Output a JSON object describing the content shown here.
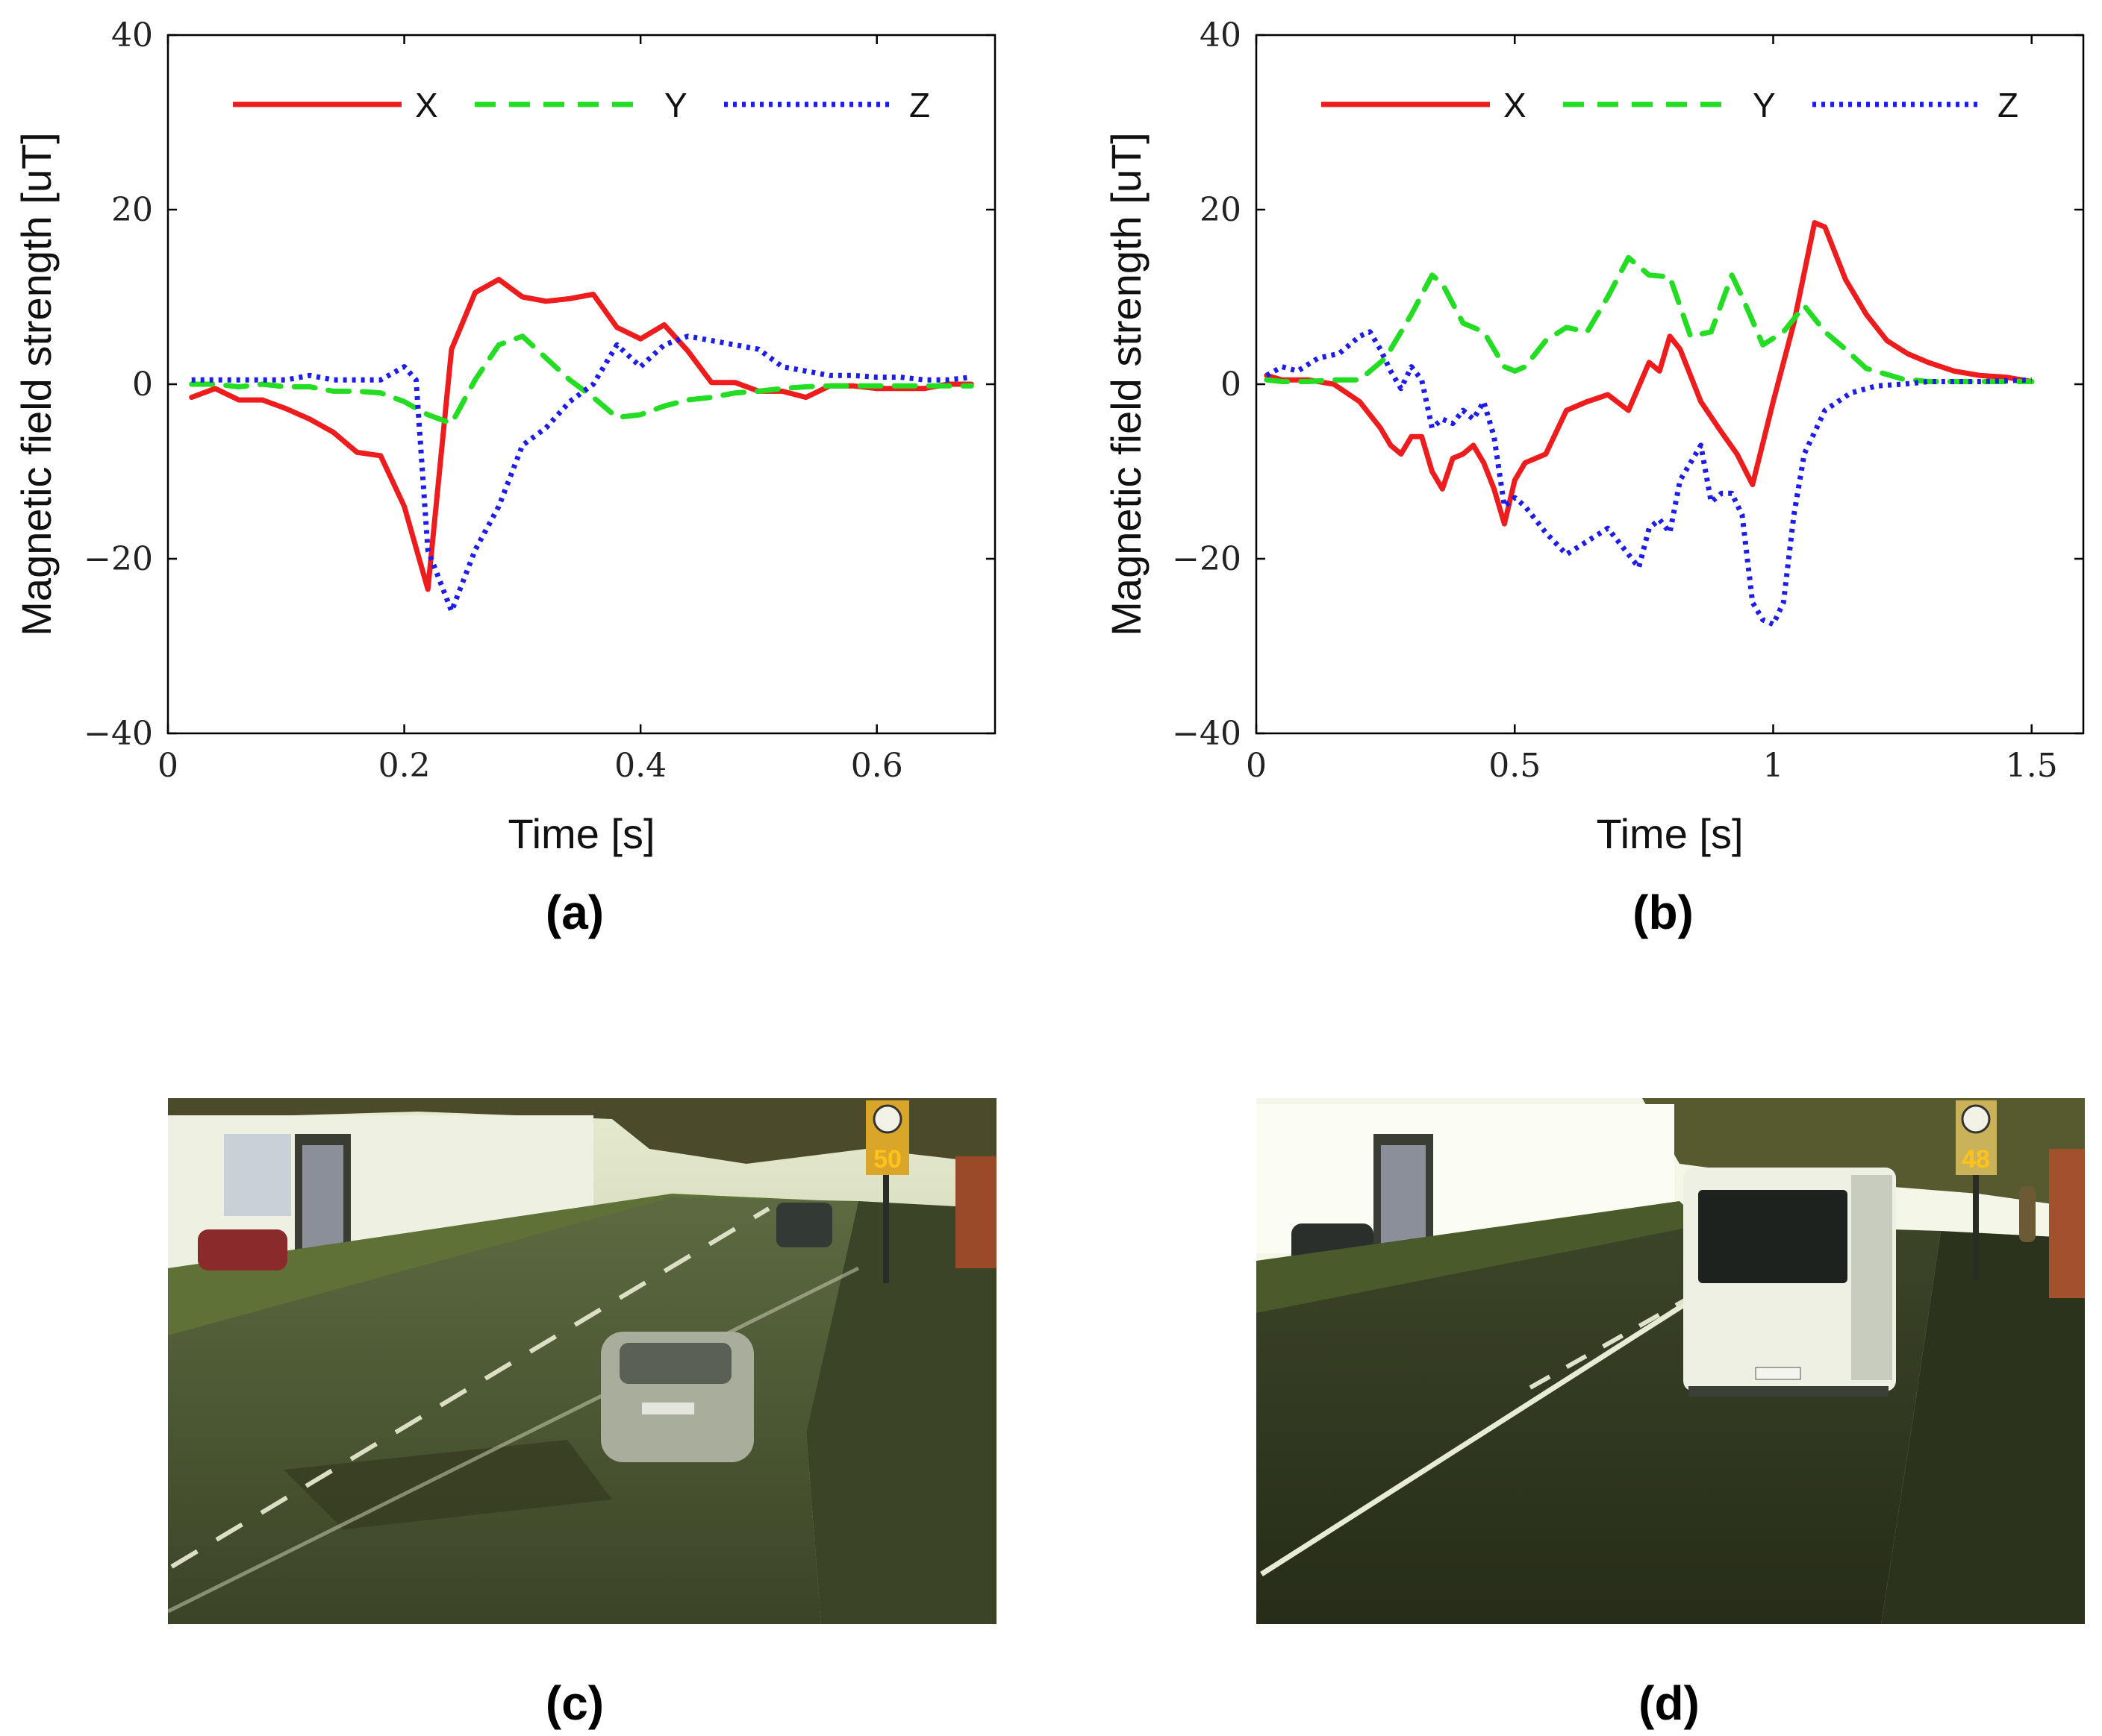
{
  "chart_data": [
    {
      "type": "line",
      "panel": "(a)",
      "xlabel": "Time [s]",
      "ylabel": "Magnetic field strength [uT]",
      "xlim": [
        0,
        0.7
      ],
      "ylim": [
        -40,
        40
      ],
      "xticks": [
        0,
        0.2,
        0.4,
        0.6
      ],
      "xtick_labels": [
        "0",
        "0.2",
        "0.4",
        "0.6"
      ],
      "yticks": [
        -40,
        -20,
        0,
        20,
        40
      ],
      "ytick_labels": [
        "−40",
        "−20",
        "0",
        "20",
        "40"
      ],
      "legend": [
        "X",
        "Y",
        "Z"
      ],
      "series": [
        {
          "name": "X",
          "color": "#ee1c1c",
          "dash": "solid",
          "x": [
            0.02,
            0.04,
            0.06,
            0.08,
            0.1,
            0.12,
            0.14,
            0.16,
            0.18,
            0.2,
            0.22,
            0.24,
            0.26,
            0.28,
            0.3,
            0.32,
            0.34,
            0.36,
            0.38,
            0.4,
            0.42,
            0.44,
            0.46,
            0.48,
            0.5,
            0.52,
            0.54,
            0.56,
            0.58,
            0.6,
            0.62,
            0.64,
            0.66,
            0.68
          ],
          "y": [
            -1.5,
            -0.5,
            -1.8,
            -1.8,
            -2.8,
            -4,
            -5.5,
            -7.8,
            -8.2,
            -14,
            -23.5,
            4,
            10.5,
            12,
            10,
            9.5,
            9.8,
            10.3,
            6.5,
            5.2,
            6.8,
            3.8,
            0.2,
            0.2,
            -0.8,
            -0.8,
            -1.5,
            -0.2,
            -0.2,
            -0.5,
            -0.5,
            -0.5,
            0,
            0
          ]
        },
        {
          "name": "Y",
          "color": "#22dd22",
          "dash": "dashed",
          "x": [
            0.02,
            0.04,
            0.06,
            0.08,
            0.1,
            0.12,
            0.14,
            0.16,
            0.18,
            0.2,
            0.22,
            0.24,
            0.26,
            0.28,
            0.3,
            0.32,
            0.34,
            0.36,
            0.38,
            0.4,
            0.42,
            0.44,
            0.46,
            0.48,
            0.5,
            0.52,
            0.54,
            0.56,
            0.58,
            0.6,
            0.62,
            0.64,
            0.66,
            0.68
          ],
          "y": [
            0,
            0,
            -0.3,
            0,
            -0.3,
            -0.3,
            -0.8,
            -0.8,
            -1,
            -2,
            -3.5,
            -4.5,
            0.5,
            4.5,
            5.5,
            3,
            0.5,
            -1.5,
            -3.8,
            -3.5,
            -2.5,
            -1.8,
            -1.5,
            -1,
            -0.8,
            -0.5,
            -0.3,
            -0.2,
            -0.2,
            -0.2,
            -0.2,
            -0.2,
            -0.2,
            -0.2
          ]
        },
        {
          "name": "Z",
          "color": "#1c1cee",
          "dash": "dotted",
          "x": [
            0.02,
            0.04,
            0.06,
            0.08,
            0.1,
            0.12,
            0.14,
            0.16,
            0.18,
            0.2,
            0.21,
            0.22,
            0.24,
            0.26,
            0.28,
            0.3,
            0.32,
            0.34,
            0.36,
            0.38,
            0.4,
            0.42,
            0.44,
            0.46,
            0.48,
            0.5,
            0.52,
            0.54,
            0.56,
            0.58,
            0.6,
            0.62,
            0.64,
            0.66,
            0.68
          ],
          "y": [
            0.5,
            0.5,
            0.5,
            0.5,
            0.5,
            1,
            0.5,
            0.5,
            0.5,
            2,
            0.5,
            -19,
            -26,
            -19,
            -14,
            -7,
            -5,
            -2,
            0,
            4.5,
            2,
            4.5,
            5.5,
            5,
            4.5,
            4,
            2,
            1.5,
            1,
            1,
            0.8,
            0.8,
            0.5,
            0.5,
            0.8
          ]
        }
      ]
    },
    {
      "type": "line",
      "panel": "(b)",
      "xlabel": "Time [s]",
      "ylabel": "Magnetic field strength [uT]",
      "xlim": [
        0,
        1.6
      ],
      "ylim": [
        -40,
        40
      ],
      "xticks": [
        0,
        0.5,
        1,
        1.5
      ],
      "xtick_labels": [
        "0",
        "0.5",
        "1",
        "1.5"
      ],
      "yticks": [
        -40,
        -20,
        0,
        20,
        40
      ],
      "ytick_labels": [
        "−40",
        "−20",
        "0",
        "20",
        "40"
      ],
      "legend": [
        "X",
        "Y",
        "Z"
      ],
      "series": [
        {
          "name": "X",
          "color": "#ee1c1c",
          "dash": "solid",
          "x": [
            0.02,
            0.05,
            0.1,
            0.15,
            0.2,
            0.24,
            0.26,
            0.28,
            0.3,
            0.32,
            0.34,
            0.36,
            0.38,
            0.4,
            0.42,
            0.44,
            0.46,
            0.48,
            0.5,
            0.52,
            0.56,
            0.6,
            0.64,
            0.68,
            0.72,
            0.76,
            0.78,
            0.8,
            0.82,
            0.86,
            0.9,
            0.93,
            0.96,
            1.0,
            1.04,
            1.08,
            1.1,
            1.14,
            1.18,
            1.22,
            1.26,
            1.3,
            1.35,
            1.4,
            1.45,
            1.5
          ],
          "y": [
            1,
            0.5,
            0.5,
            0,
            -2,
            -5,
            -7,
            -8,
            -6,
            -6,
            -10,
            -12,
            -8.5,
            -8,
            -7,
            -9,
            -12,
            -16,
            -11,
            -9,
            -8,
            -3,
            -2,
            -1.2,
            -3,
            2.5,
            1.5,
            5.5,
            4,
            -2,
            -5.5,
            -8,
            -11.5,
            -2,
            7,
            18.5,
            18,
            12,
            8,
            5,
            3.5,
            2.5,
            1.5,
            1,
            0.8,
            0.3
          ]
        },
        {
          "name": "Y",
          "color": "#22dd22",
          "dash": "dashed",
          "x": [
            0.02,
            0.05,
            0.1,
            0.15,
            0.2,
            0.25,
            0.3,
            0.34,
            0.36,
            0.4,
            0.44,
            0.48,
            0.5,
            0.52,
            0.56,
            0.6,
            0.64,
            0.68,
            0.72,
            0.76,
            0.8,
            0.84,
            0.88,
            0.92,
            0.94,
            0.98,
            1.02,
            1.06,
            1.1,
            1.14,
            1.18,
            1.25,
            1.3,
            1.4,
            1.5
          ],
          "y": [
            0.5,
            0.3,
            0.3,
            0.5,
            0.5,
            3,
            8,
            12.5,
            11.5,
            7,
            6,
            2,
            1.5,
            2,
            5,
            6.5,
            6,
            10,
            14.5,
            12.5,
            12.3,
            5.5,
            6,
            12.5,
            10,
            4.5,
            6,
            9,
            6,
            4,
            1.8,
            0.6,
            0.3,
            0.3,
            0.3
          ]
        },
        {
          "name": "Z",
          "color": "#1c1cee",
          "dash": "dotted",
          "x": [
            0.02,
            0.05,
            0.08,
            0.12,
            0.16,
            0.2,
            0.22,
            0.24,
            0.26,
            0.28,
            0.3,
            0.32,
            0.34,
            0.36,
            0.38,
            0.4,
            0.42,
            0.44,
            0.46,
            0.48,
            0.5,
            0.52,
            0.56,
            0.6,
            0.64,
            0.68,
            0.72,
            0.74,
            0.76,
            0.78,
            0.8,
            0.82,
            0.84,
            0.86,
            0.88,
            0.9,
            0.92,
            0.94,
            0.96,
            0.98,
            1.0,
            1.02,
            1.04,
            1.06,
            1.1,
            1.15,
            1.2,
            1.25,
            1.3,
            1.4,
            1.5
          ],
          "y": [
            1,
            2,
            1.5,
            3,
            3.5,
            5.5,
            6,
            4,
            1.5,
            -0.5,
            2,
            0.5,
            -5,
            -4,
            -4.5,
            -3,
            -4,
            -2,
            -6,
            -14,
            -13,
            -14,
            -17,
            -19.5,
            -18,
            -16.5,
            -19.5,
            -21,
            -16.5,
            -15.5,
            -17,
            -11,
            -9,
            -7,
            -13.5,
            -12.5,
            -12.5,
            -15,
            -25,
            -27,
            -27.5,
            -25,
            -15,
            -8,
            -3,
            -1,
            -0.2,
            0,
            0.3,
            0.3,
            0.5
          ]
        }
      ]
    }
  ],
  "labels": {
    "a": "(a)",
    "b": "(b)",
    "c": "(c)",
    "d": "(d)"
  },
  "photos": {
    "c": {
      "sign": "50"
    },
    "d": {
      "sign": "48"
    }
  }
}
